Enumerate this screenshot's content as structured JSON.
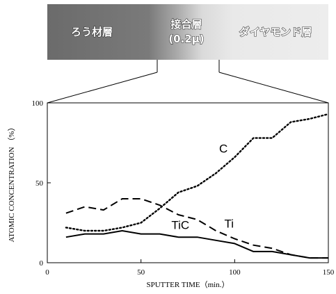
{
  "layers": {
    "left": "ろう材層",
    "middle_line1": "接合層",
    "middle_line2": "(0.2μ)",
    "right": "ダイヤモンド層"
  },
  "chart_data": {
    "type": "line",
    "title": "",
    "xlabel": "SPUTTER TIME（min.）",
    "ylabel": "ATOMIC CONCENTRATION （%）",
    "xlim": [
      0,
      150
    ],
    "ylim": [
      0,
      100
    ],
    "xticks": [
      0,
      50,
      100,
      150
    ],
    "yticks": [
      0,
      50,
      100
    ],
    "grid": false,
    "series": [
      {
        "name": "C",
        "style": "dotted",
        "x": [
          10,
          20,
          30,
          40,
          50,
          60,
          70,
          80,
          90,
          100,
          110,
          120,
          130,
          140,
          150
        ],
        "values": [
          22,
          20,
          20,
          22,
          25,
          34,
          44,
          48,
          56,
          66,
          78,
          78,
          88,
          90,
          93
        ]
      },
      {
        "name": "Ti",
        "style": "dashed",
        "x": [
          10,
          20,
          30,
          40,
          50,
          60,
          70,
          80,
          90,
          100,
          110,
          120,
          130,
          140,
          150
        ],
        "values": [
          31,
          35,
          33,
          40,
          40,
          36,
          30,
          27,
          20,
          15,
          11,
          9,
          5,
          3,
          3
        ]
      },
      {
        "name": "TiC",
        "style": "solid",
        "x": [
          10,
          20,
          30,
          40,
          50,
          60,
          70,
          80,
          90,
          100,
          110,
          120,
          130,
          140,
          150
        ],
        "values": [
          16,
          18,
          18,
          20,
          18,
          18,
          16,
          16,
          14,
          12,
          7,
          7,
          5,
          3,
          3
        ]
      }
    ]
  }
}
